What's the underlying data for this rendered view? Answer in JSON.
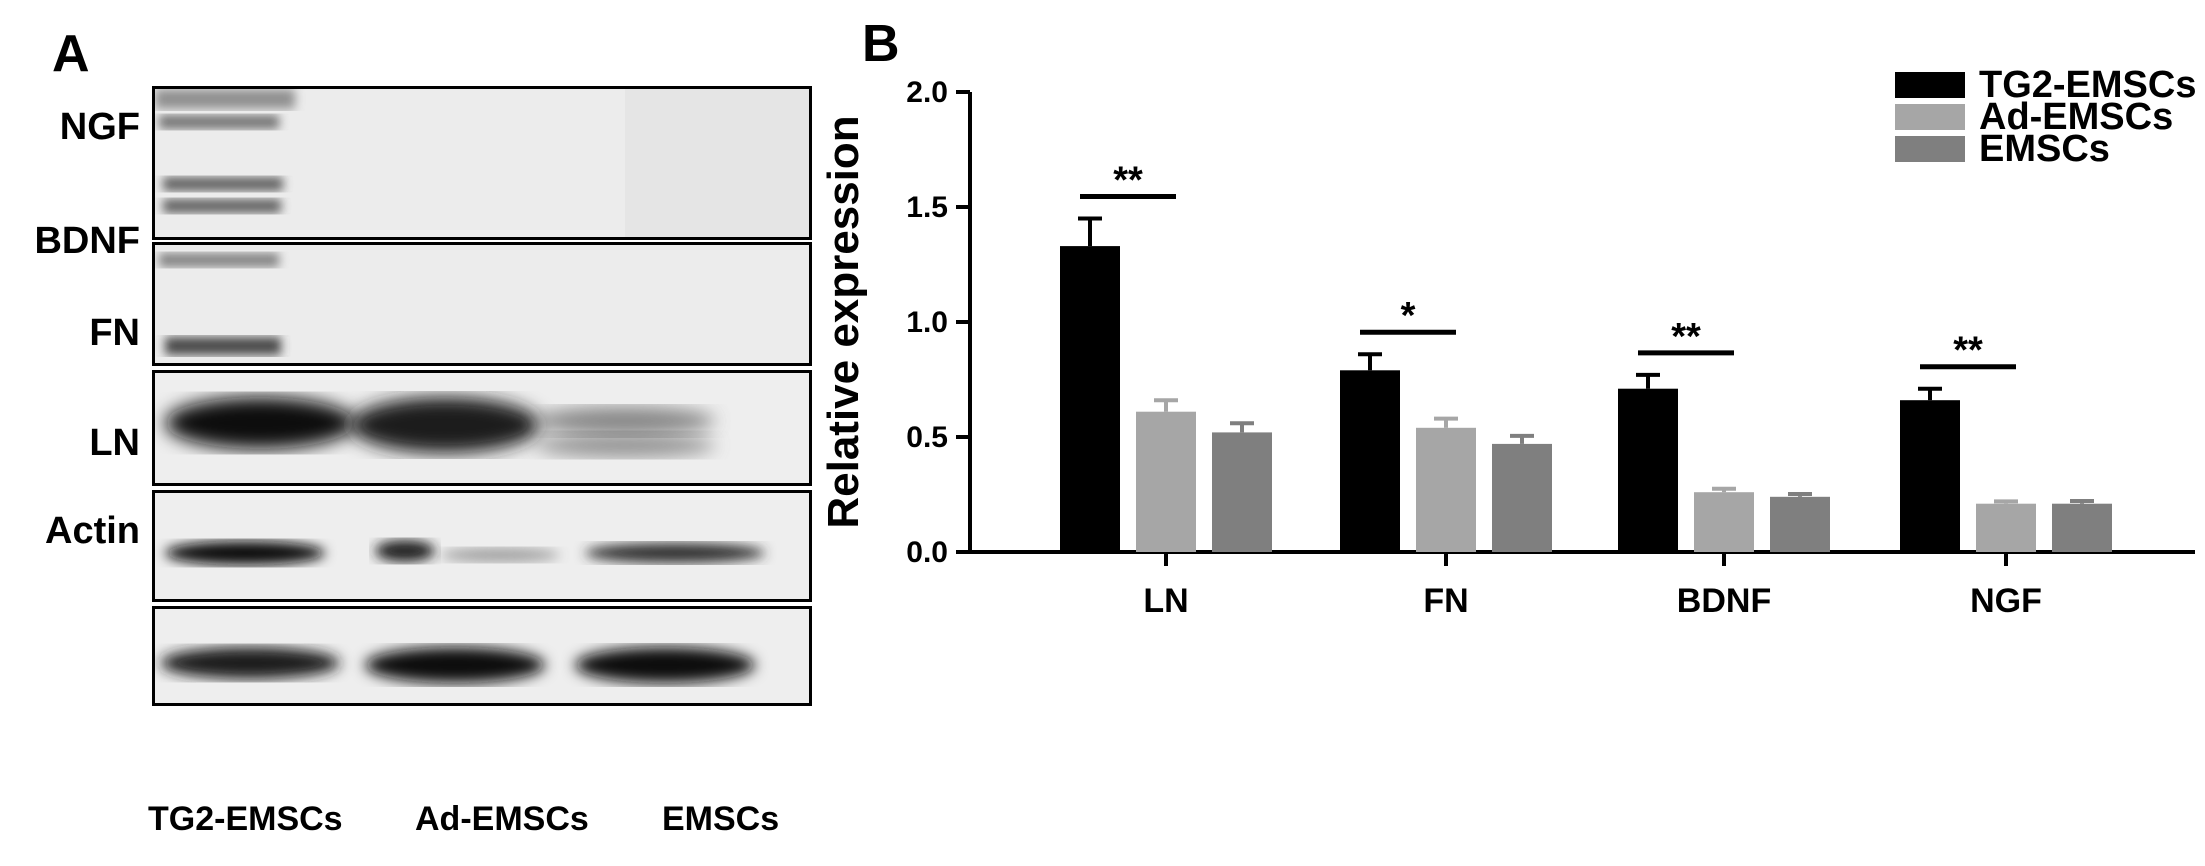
{
  "panel_a": {
    "letter": "A",
    "rows": [
      {
        "label": "NGF"
      },
      {
        "label": "BDNF"
      },
      {
        "label": "FN"
      },
      {
        "label": "LN"
      },
      {
        "label": "Actin"
      }
    ],
    "lanes": [
      "TG2-EMSCs",
      "Ad-EMSCs",
      "EMSCs"
    ]
  },
  "panel_b": {
    "letter": "B"
  },
  "chart_data": {
    "type": "bar",
    "ylabel": "Relative expression",
    "ylim": [
      0,
      2.0
    ],
    "yticks": [
      "0.0",
      "0.5",
      "1.0",
      "1.5",
      "2.0"
    ],
    "categories": [
      "LN",
      "FN",
      "BDNF",
      "NGF"
    ],
    "series": [
      {
        "name": "TG2-EMSCs",
        "color": "#000000",
        "values": [
          1.33,
          0.79,
          0.71,
          0.66
        ],
        "errors": [
          0.12,
          0.07,
          0.06,
          0.05
        ]
      },
      {
        "name": "Ad-EMSCs",
        "color": "#a6a6a6",
        "values": [
          0.61,
          0.54,
          0.26,
          0.21
        ],
        "errors": [
          0.05,
          0.04,
          0.015,
          0.01
        ]
      },
      {
        "name": "EMSCs",
        "color": "#7f7f7f",
        "values": [
          0.52,
          0.47,
          0.24,
          0.21
        ],
        "errors": [
          0.04,
          0.035,
          0.012,
          0.012
        ]
      }
    ],
    "significance": [
      "**",
      "*",
      "**",
      "**"
    ],
    "legend_position": "top-right",
    "grid": false
  }
}
